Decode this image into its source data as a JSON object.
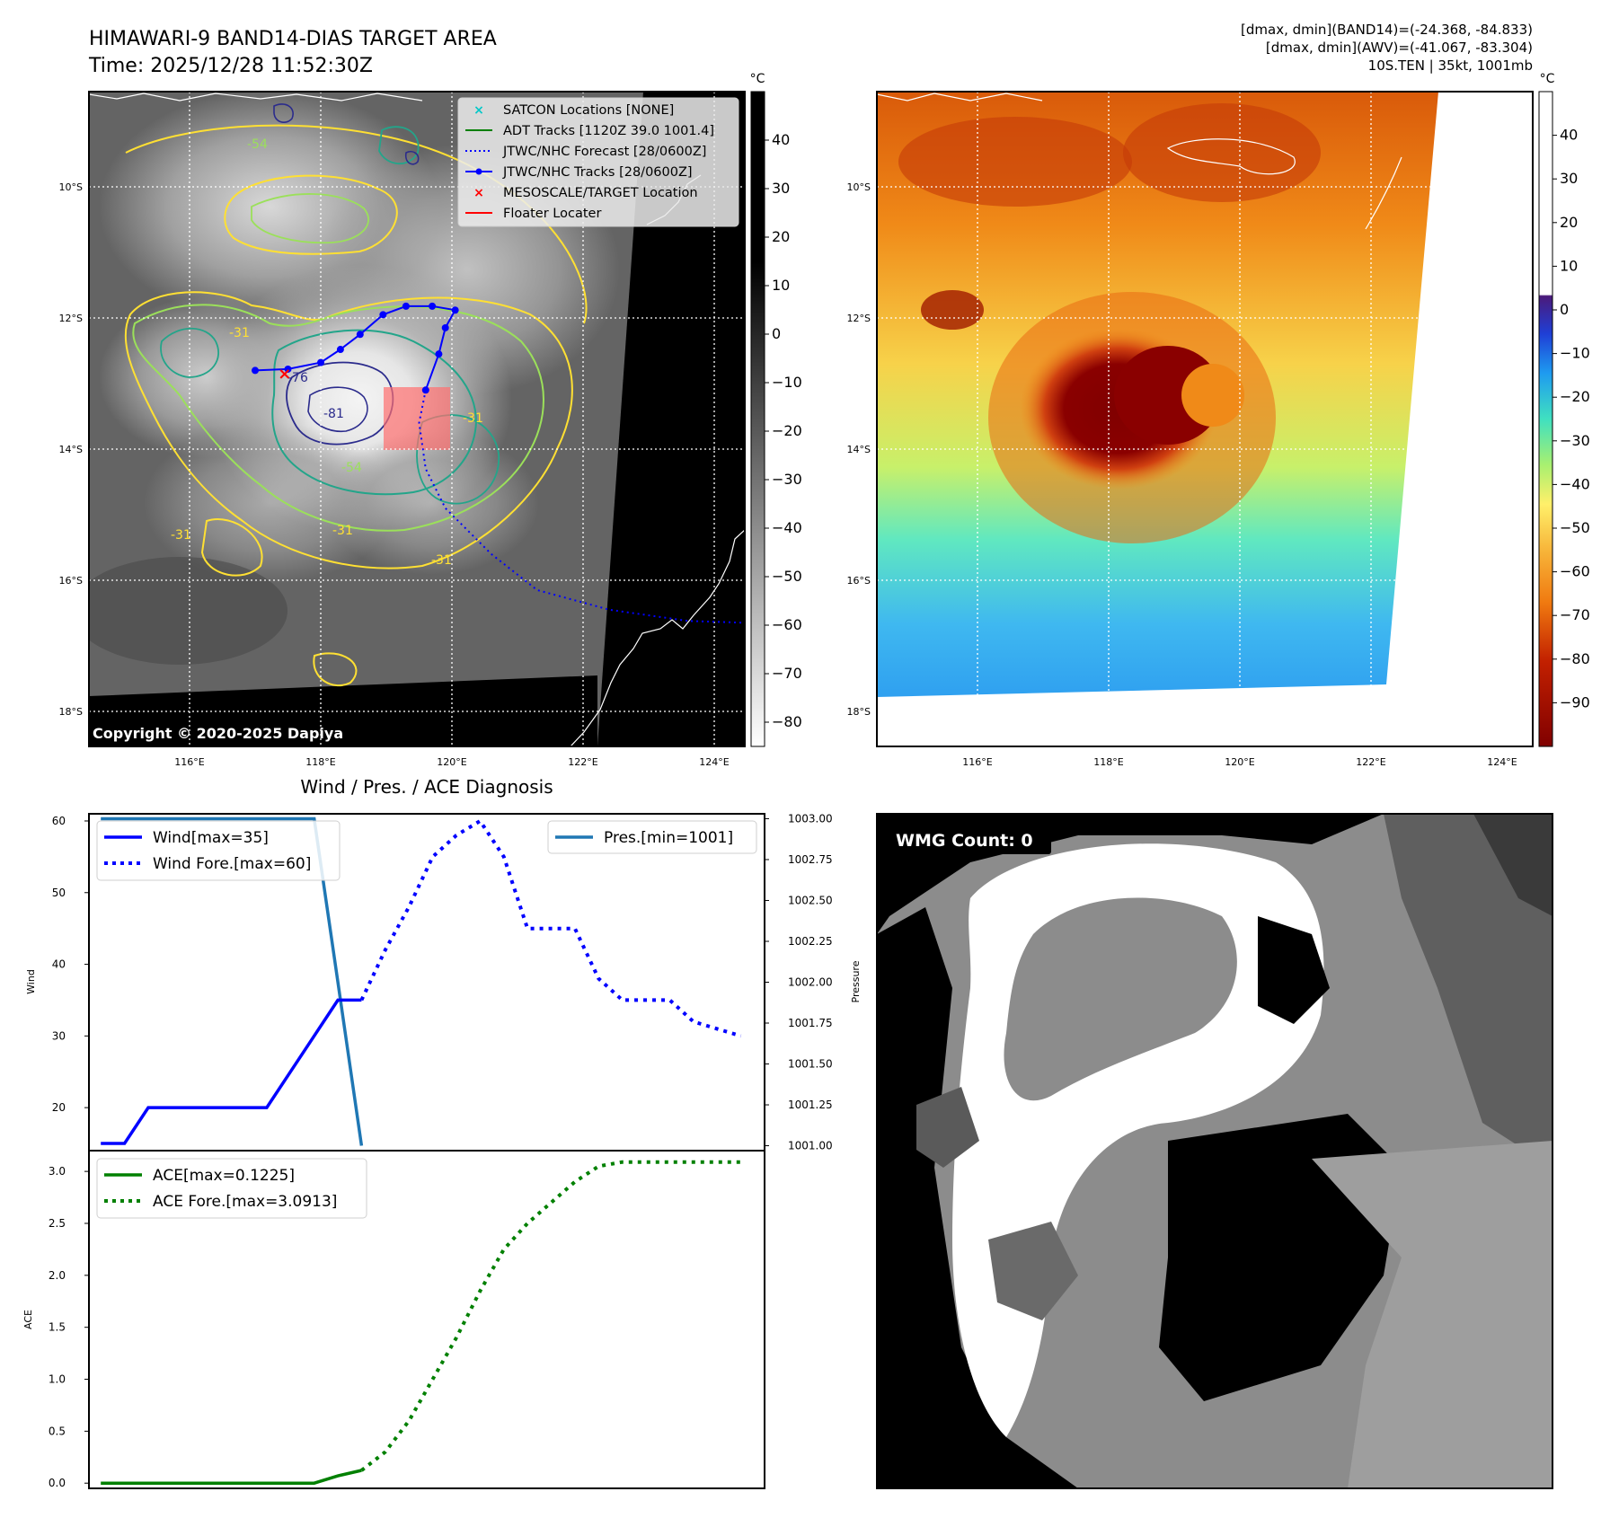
{
  "header": {
    "title_line1": "HIMAWARI-9 BAND14-DIAS TARGET AREA",
    "title_line2": "Time: 2025/12/28 11:52:30Z",
    "info_line1": "[dmax, dmin](BAND14)=(-24.368, -84.833)",
    "info_line2": "[dmax, dmin](AWV)=(-41.067, -83.304)",
    "info_line3": "10S.TEN | 35kt, 1001mb"
  },
  "map_axes": {
    "lat_labels": [
      "10°S",
      "12°S",
      "14°S",
      "16°S",
      "18°S"
    ],
    "lon_labels": [
      "116°E",
      "118°E",
      "120°E",
      "122°E",
      "124°E"
    ]
  },
  "ir_panel": {
    "copyright": "Copyright © 2020-2025 Dapiya",
    "colorbar_unit": "°C",
    "colorbar_ticks": [
      "40",
      "30",
      "20",
      "10",
      "0",
      "−10",
      "−20",
      "−30",
      "−40",
      "−50",
      "−60",
      "−70",
      "−80"
    ],
    "contour_labels": [
      "-54",
      "-31",
      "-76",
      "-81",
      "-54",
      "-31",
      "-31",
      "-31",
      "-31"
    ],
    "legend": [
      {
        "label": "SATCON Locations [NONE]",
        "color": "#00c8c8",
        "style": "x-marker"
      },
      {
        "label": "ADT Tracks [1120Z 39.0 1001.4]",
        "color": "#008000",
        "style": "solid"
      },
      {
        "label": "JTWC/NHC Forecast [28/0600Z]",
        "color": "#0000ff",
        "style": "dotted"
      },
      {
        "label": "JTWC/NHC Tracks [28/0600Z]",
        "color": "#0000ff",
        "style": "solid-dot"
      },
      {
        "label": "MESOSCALE/TARGET Location",
        "color": "#ff0000",
        "style": "x-marker"
      },
      {
        "label": "Floater Locater",
        "color": "#ff0000",
        "style": "solid"
      }
    ],
    "tracks": {
      "jtwc_best": [
        [
          117.0,
          12.8
        ],
        [
          117.5,
          12.78
        ],
        [
          118.0,
          12.68
        ],
        [
          118.3,
          12.48
        ],
        [
          118.6,
          12.25
        ],
        [
          118.95,
          11.95
        ],
        [
          119.3,
          11.82
        ],
        [
          119.7,
          11.82
        ],
        [
          120.05,
          11.88
        ],
        [
          119.9,
          12.15
        ],
        [
          119.8,
          12.55
        ],
        [
          119.6,
          13.1
        ]
      ],
      "jtwc_forecast": [
        [
          119.6,
          13.1
        ],
        [
          119.5,
          13.6
        ],
        [
          119.6,
          14.3
        ],
        [
          119.9,
          14.9
        ],
        [
          120.6,
          15.6
        ],
        [
          121.3,
          16.15
        ],
        [
          122.4,
          16.45
        ],
        [
          123.6,
          16.62
        ],
        [
          124.5,
          16.65
        ]
      ],
      "target": [
        117.45,
        12.85
      ],
      "floater_box": [
        [
          118.9,
          13.1
        ],
        [
          119.9,
          13.1
        ],
        [
          119.9,
          14.05
        ],
        [
          118.9,
          14.05
        ]
      ]
    }
  },
  "awv_panel": {
    "colorbar_unit": "°C",
    "colorbar_ticks": [
      "40",
      "30",
      "20",
      "10",
      "0",
      "−10",
      "−20",
      "−30",
      "−40",
      "−50",
      "−60",
      "−70",
      "−80",
      "−90"
    ]
  },
  "diag_panel": {
    "title": "Wind / Pres. / ACE Diagnosis",
    "wind_ylabel": "Wind",
    "pres_ylabel": "Pressure",
    "ace_ylabel": "ACE",
    "wind_ticks": [
      "20",
      "30",
      "40",
      "50",
      "60"
    ],
    "pres_ticks": [
      "1001.00",
      "1001.25",
      "1001.50",
      "1001.75",
      "1002.00",
      "1002.25",
      "1002.50",
      "1002.75",
      "1003.00"
    ],
    "ace_ticks": [
      "0.0",
      "0.5",
      "1.0",
      "1.5",
      "2.0",
      "2.5",
      "3.0"
    ],
    "legend_wind": "Wind[max=35]",
    "legend_wind_fore": "Wind Fore.[max=60]",
    "legend_pres": "Pres.[min=1001]",
    "legend_ace": "ACE[max=0.1225]",
    "legend_ace_fore": "ACE Fore.[max=3.0913]"
  },
  "wmg_panel": {
    "count_label": "WMG Count: 0"
  },
  "chart_data": [
    {
      "type": "line",
      "title": "Wind / Pres. / ACE Diagnosis",
      "ylabel": "Wind",
      "ylim": [
        14,
        61
      ],
      "xlim": [
        -0.5,
        28
      ],
      "series": [
        {
          "name": "Wind[max=35]",
          "x": [
            0,
            1,
            2,
            3,
            4,
            5,
            6,
            7,
            8,
            9,
            10,
            11
          ],
          "values": [
            15,
            15,
            20,
            20,
            20,
            20,
            20,
            20,
            25,
            30,
            35,
            35
          ]
        },
        {
          "name": "Wind Fore.[max=60]",
          "x": [
            11,
            12,
            13,
            14,
            15,
            16,
            17,
            18,
            19,
            20,
            21,
            22,
            23,
            24,
            25,
            26,
            27
          ],
          "values": [
            35,
            42,
            48,
            55,
            58,
            60,
            55,
            45,
            45,
            45,
            38,
            35,
            35,
            35,
            32,
            31,
            30
          ]
        }
      ],
      "secondary_axis": {
        "ylabel": "Pressure",
        "ylim": [
          1000.97,
          1003.03
        ]
      },
      "secondary_series": [
        {
          "name": "Pres.[min=1001]",
          "x": [
            0,
            1,
            2,
            3,
            4,
            5,
            6,
            7,
            8,
            9,
            10,
            11
          ],
          "values": [
            1003,
            1003,
            1003,
            1003,
            1003,
            1003,
            1003,
            1003,
            1003,
            1003,
            1002,
            1001
          ]
        }
      ],
      "legend": "upper-left / upper-right"
    },
    {
      "type": "line",
      "ylabel": "ACE",
      "ylim": [
        -0.05,
        3.2
      ],
      "xlim": [
        -0.5,
        28
      ],
      "series": [
        {
          "name": "ACE[max=0.1225]",
          "x": [
            0,
            1,
            2,
            3,
            4,
            5,
            6,
            7,
            8,
            9,
            10,
            11
          ],
          "values": [
            0,
            0,
            0,
            0,
            0,
            0,
            0,
            0,
            0,
            0,
            0.07,
            0.1225
          ]
        },
        {
          "name": "ACE Fore.[max=3.0913]",
          "x": [
            11,
            12,
            13,
            14,
            15,
            16,
            17,
            18,
            19,
            20,
            21,
            22,
            23,
            24,
            25,
            26,
            27
          ],
          "values": [
            0.1225,
            0.3,
            0.6,
            1.0,
            1.4,
            1.85,
            2.25,
            2.5,
            2.7,
            2.9,
            3.05,
            3.09,
            3.09,
            3.09,
            3.09,
            3.09,
            3.09
          ]
        }
      ],
      "legend": "upper-left"
    }
  ]
}
